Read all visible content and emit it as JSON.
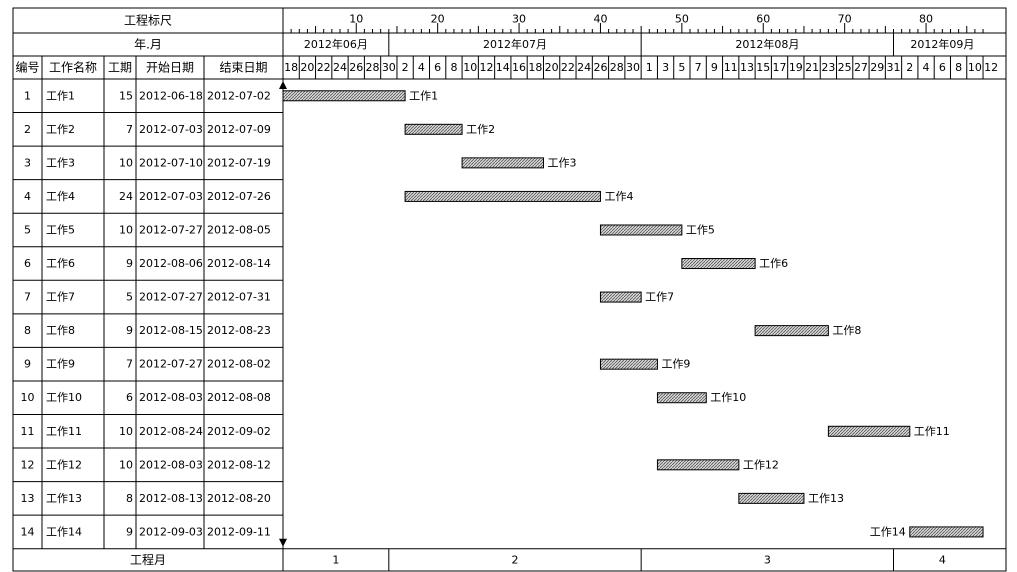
{
  "header": {
    "scale_label": "工程标尺",
    "month_label": "年.月",
    "columns": [
      "编号",
      "工作名称",
      "工期",
      "开始日期",
      "结束日期"
    ],
    "footer_label": "工程月"
  },
  "chart_data": {
    "type": "gantt",
    "title_partial": "",
    "scale_ticks": [
      "10",
      "20",
      "30",
      "40",
      "50",
      "60",
      "70",
      "80"
    ],
    "months": [
      {
        "label": "2012年06月",
        "start_day": 1,
        "days": 13
      },
      {
        "label": "2012年07月",
        "start_day": 14,
        "days": 31
      },
      {
        "label": "2012年08月",
        "start_day": 45,
        "days": 31
      },
      {
        "label": "2012年09月",
        "start_day": 76,
        "days": 12
      }
    ],
    "day_labels": [
      "18",
      "20",
      "22",
      "24",
      "26",
      "28",
      "30",
      "2",
      "4",
      "6",
      "8",
      "10",
      "12",
      "14",
      "16",
      "18",
      "20",
      "22",
      "24",
      "26",
      "28",
      "30",
      "1",
      "3",
      "5",
      "7",
      "9",
      "11",
      "13",
      "15",
      "17",
      "19",
      "21",
      "23",
      "25",
      "27",
      "29",
      "31",
      "2",
      "4",
      "6",
      "8",
      "10",
      "12"
    ],
    "day_label_start": 1,
    "total_days": 87,
    "footer_months": [
      "1",
      "2",
      "3",
      "4"
    ],
    "tasks": [
      {
        "id": "1",
        "name": "工作1",
        "duration": "15",
        "start": "2012-06-18",
        "end": "2012-07-02",
        "s": 1,
        "d": 15
      },
      {
        "id": "2",
        "name": "工作2",
        "duration": "7",
        "start": "2012-07-03",
        "end": "2012-07-09",
        "s": 16,
        "d": 7
      },
      {
        "id": "3",
        "name": "工作3",
        "duration": "10",
        "start": "2012-07-10",
        "end": "2012-07-19",
        "s": 23,
        "d": 10
      },
      {
        "id": "4",
        "name": "工作4",
        "duration": "24",
        "start": "2012-07-03",
        "end": "2012-07-26",
        "s": 16,
        "d": 24
      },
      {
        "id": "5",
        "name": "工作5",
        "duration": "10",
        "start": "2012-07-27",
        "end": "2012-08-05",
        "s": 40,
        "d": 10
      },
      {
        "id": "6",
        "name": "工作6",
        "duration": "9",
        "start": "2012-08-06",
        "end": "2012-08-14",
        "s": 50,
        "d": 9
      },
      {
        "id": "7",
        "name": "工作7",
        "duration": "5",
        "start": "2012-07-27",
        "end": "2012-07-31",
        "s": 40,
        "d": 5
      },
      {
        "id": "8",
        "name": "工作8",
        "duration": "9",
        "start": "2012-08-15",
        "end": "2012-08-23",
        "s": 59,
        "d": 9
      },
      {
        "id": "9",
        "name": "工作9",
        "duration": "7",
        "start": "2012-07-27",
        "end": "2012-08-02",
        "s": 40,
        "d": 7
      },
      {
        "id": "10",
        "name": "工作10",
        "duration": "6",
        "start": "2012-08-03",
        "end": "2012-08-08",
        "s": 47,
        "d": 6
      },
      {
        "id": "11",
        "name": "工作11",
        "duration": "10",
        "start": "2012-08-24",
        "end": "2012-09-02",
        "s": 68,
        "d": 10
      },
      {
        "id": "12",
        "name": "工作12",
        "duration": "10",
        "start": "2012-08-03",
        "end": "2012-08-12",
        "s": 47,
        "d": 10
      },
      {
        "id": "13",
        "name": "工作13",
        "duration": "8",
        "start": "2012-08-13",
        "end": "2012-08-20",
        "s": 57,
        "d": 8
      },
      {
        "id": "14",
        "name": "工作14",
        "duration": "9",
        "start": "2012-09-03",
        "end": "2012-09-11",
        "s": 78,
        "d": 9,
        "label_left": true
      }
    ]
  }
}
